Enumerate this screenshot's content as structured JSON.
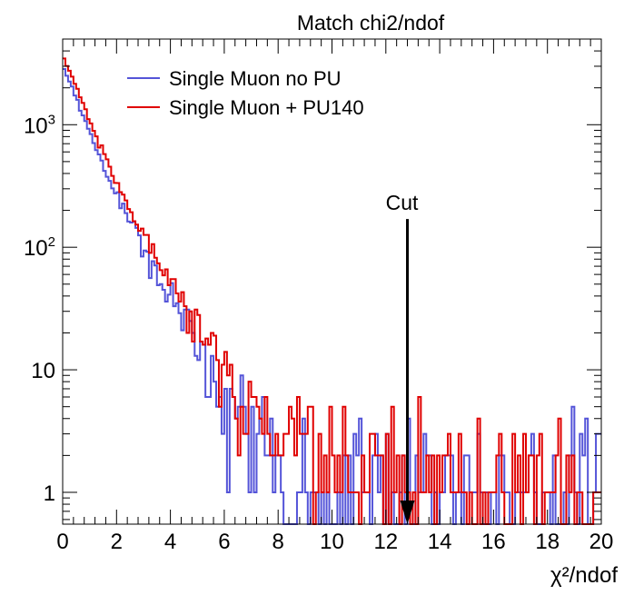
{
  "chart_data": {
    "type": "histogram",
    "title": "Match chi2/ndof",
    "xlabel": "χ²/ndof",
    "ylabel": "",
    "xlim": [
      0,
      20
    ],
    "ylim": [
      0.55,
      5000
    ],
    "yscale": "log",
    "grid": false,
    "bin_width": 0.1,
    "x_ticks": [
      "0",
      "2",
      "4",
      "6",
      "8",
      "10",
      "12",
      "14",
      "16",
      "18",
      "20"
    ],
    "y_ticks": [
      {
        "value": 1,
        "label": "1"
      },
      {
        "value": 10,
        "label": "10"
      },
      {
        "value": 100,
        "label": "10",
        "exp": "2"
      },
      {
        "value": 1000,
        "label": "10",
        "exp": "3"
      }
    ],
    "legend_position": "top-left",
    "series": [
      {
        "name": "Single Muon no PU",
        "color": "#5454d8",
        "anchors": [
          [
            0,
            3000
          ],
          [
            0.5,
            1700
          ],
          [
            1,
            850
          ],
          [
            1.5,
            470
          ],
          [
            2,
            270
          ],
          [
            2.5,
            160
          ],
          [
            3,
            100
          ],
          [
            3.5,
            62
          ],
          [
            4,
            43
          ],
          [
            4.5,
            28
          ],
          [
            5,
            17
          ],
          [
            5.5,
            11
          ],
          [
            6,
            6.5
          ],
          [
            6.5,
            4.8
          ],
          [
            7,
            3.2
          ],
          [
            7.5,
            2.2
          ],
          [
            8,
            1.6
          ],
          [
            8.5,
            1.4
          ],
          [
            9,
            1.2
          ],
          [
            10,
            1
          ],
          [
            20,
            1
          ]
        ]
      },
      {
        "name": "Single Muon + PU140",
        "color": "#e00000",
        "anchors": [
          [
            0,
            3600
          ],
          [
            0.5,
            2100
          ],
          [
            1,
            1050
          ],
          [
            1.5,
            580
          ],
          [
            2,
            340
          ],
          [
            2.5,
            200
          ],
          [
            3,
            125
          ],
          [
            3.5,
            80
          ],
          [
            4,
            55
          ],
          [
            4.5,
            36
          ],
          [
            5,
            23
          ],
          [
            5.5,
            15
          ],
          [
            6,
            9.5
          ],
          [
            6.5,
            6.8
          ],
          [
            7,
            5
          ],
          [
            7.5,
            3.8
          ],
          [
            8,
            3
          ],
          [
            8.5,
            2.6
          ],
          [
            9,
            2.3
          ],
          [
            9.5,
            2
          ],
          [
            10,
            1.9
          ],
          [
            12,
            1.6
          ],
          [
            14,
            1.35
          ],
          [
            16,
            1.2
          ],
          [
            18,
            1.1
          ],
          [
            20,
            1
          ]
        ]
      }
    ],
    "annotations": [
      {
        "text": "Cut",
        "x": 12.8,
        "y_from": 170,
        "y_to": 0.55
      }
    ]
  }
}
